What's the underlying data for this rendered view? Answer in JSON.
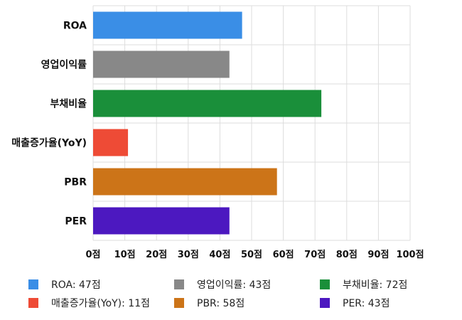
{
  "chart_data": {
    "type": "bar",
    "orientation": "horizontal",
    "categories": [
      "ROA",
      "영업이익률",
      "부채비율",
      "매출증가율(YoY)",
      "PBR",
      "PER"
    ],
    "values": [
      47,
      43,
      72,
      11,
      58,
      43
    ],
    "colors": [
      "#3a8ee6",
      "#888888",
      "#1a8f3a",
      "#ee4b36",
      "#cc7418",
      "#4c18c0"
    ],
    "xlim": [
      0,
      100
    ],
    "xticks": [
      "0점",
      "10점",
      "20점",
      "30점",
      "40점",
      "50점",
      "60점",
      "70점",
      "80점",
      "90점",
      "100점"
    ],
    "grid": true,
    "legend_position": "bottom",
    "legend": [
      "ROA: 47점",
      "영업이익률: 43점",
      "부채비율: 72점",
      "매출증가율(YoY): 11점",
      "PBR: 58점",
      "PER: 43점"
    ]
  }
}
